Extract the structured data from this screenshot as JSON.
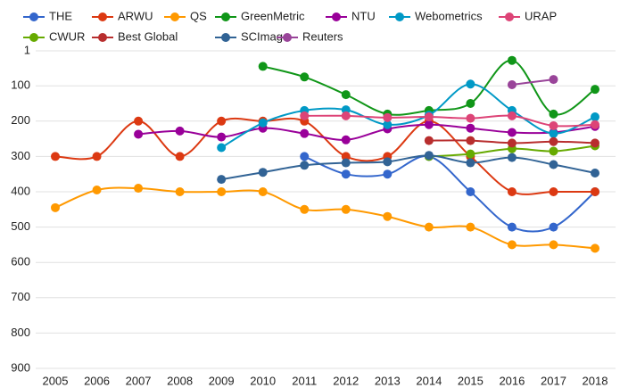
{
  "chart_data": {
    "type": "line",
    "x": [
      2005,
      2006,
      2007,
      2008,
      2009,
      2010,
      2011,
      2012,
      2013,
      2014,
      2015,
      2016,
      2017,
      2018
    ],
    "ylim": [
      1,
      900
    ],
    "y_inverted": true,
    "yticks": [
      1,
      100,
      200,
      300,
      400,
      500,
      600,
      700,
      800,
      900
    ],
    "grid": true,
    "legend": "top",
    "series": [
      {
        "name": "THE",
        "color": "#3366cc",
        "values": [
          null,
          null,
          null,
          null,
          null,
          null,
          300,
          350,
          350,
          300,
          400,
          500,
          500,
          400
        ]
      },
      {
        "name": "ARWU",
        "color": "#dc3912",
        "values": [
          300,
          300,
          200,
          300,
          200,
          200,
          200,
          300,
          300,
          200,
          300,
          400,
          400,
          400
        ]
      },
      {
        "name": "QS",
        "color": "#ff9900",
        "values": [
          445,
          395,
          390,
          400,
          400,
          400,
          450,
          450,
          470,
          500,
          500,
          550,
          550,
          560
        ]
      },
      {
        "name": "GreenMetric",
        "color": "#109618",
        "values": [
          null,
          null,
          null,
          null,
          null,
          45,
          75,
          125,
          180,
          170,
          150,
          28,
          180,
          110
        ]
      },
      {
        "name": "NTU",
        "color": "#990099",
        "values": [
          null,
          null,
          237,
          228,
          245,
          220,
          235,
          253,
          222,
          210,
          220,
          232,
          232,
          215
        ]
      },
      {
        "name": "Webometrics",
        "color": "#0099c6",
        "values": [
          null,
          null,
          null,
          null,
          275,
          205,
          170,
          168,
          210,
          183,
          95,
          170,
          235,
          188
        ]
      },
      {
        "name": "URAP",
        "color": "#dd4477",
        "values": [
          null,
          null,
          null,
          null,
          null,
          null,
          185,
          185,
          190,
          188,
          192,
          185,
          213,
          210
        ]
      },
      {
        "name": "CWUR",
        "color": "#66aa00",
        "values": [
          null,
          null,
          null,
          null,
          null,
          null,
          null,
          null,
          null,
          300,
          293,
          278,
          285,
          270
        ]
      },
      {
        "name": "Best Global",
        "color": "#b82e2e",
        "values": [
          null,
          null,
          null,
          null,
          null,
          null,
          null,
          null,
          null,
          255,
          255,
          262,
          258,
          262
        ]
      },
      {
        "name": "SCImago",
        "color": "#316395",
        "values": [
          null,
          null,
          null,
          null,
          365,
          345,
          325,
          318,
          315,
          297,
          318,
          303,
          323,
          347
        ]
      },
      {
        "name": "Reuters",
        "color": "#994499",
        "values": [
          null,
          null,
          null,
          null,
          null,
          null,
          null,
          null,
          null,
          null,
          null,
          97,
          82,
          null
        ]
      }
    ]
  }
}
